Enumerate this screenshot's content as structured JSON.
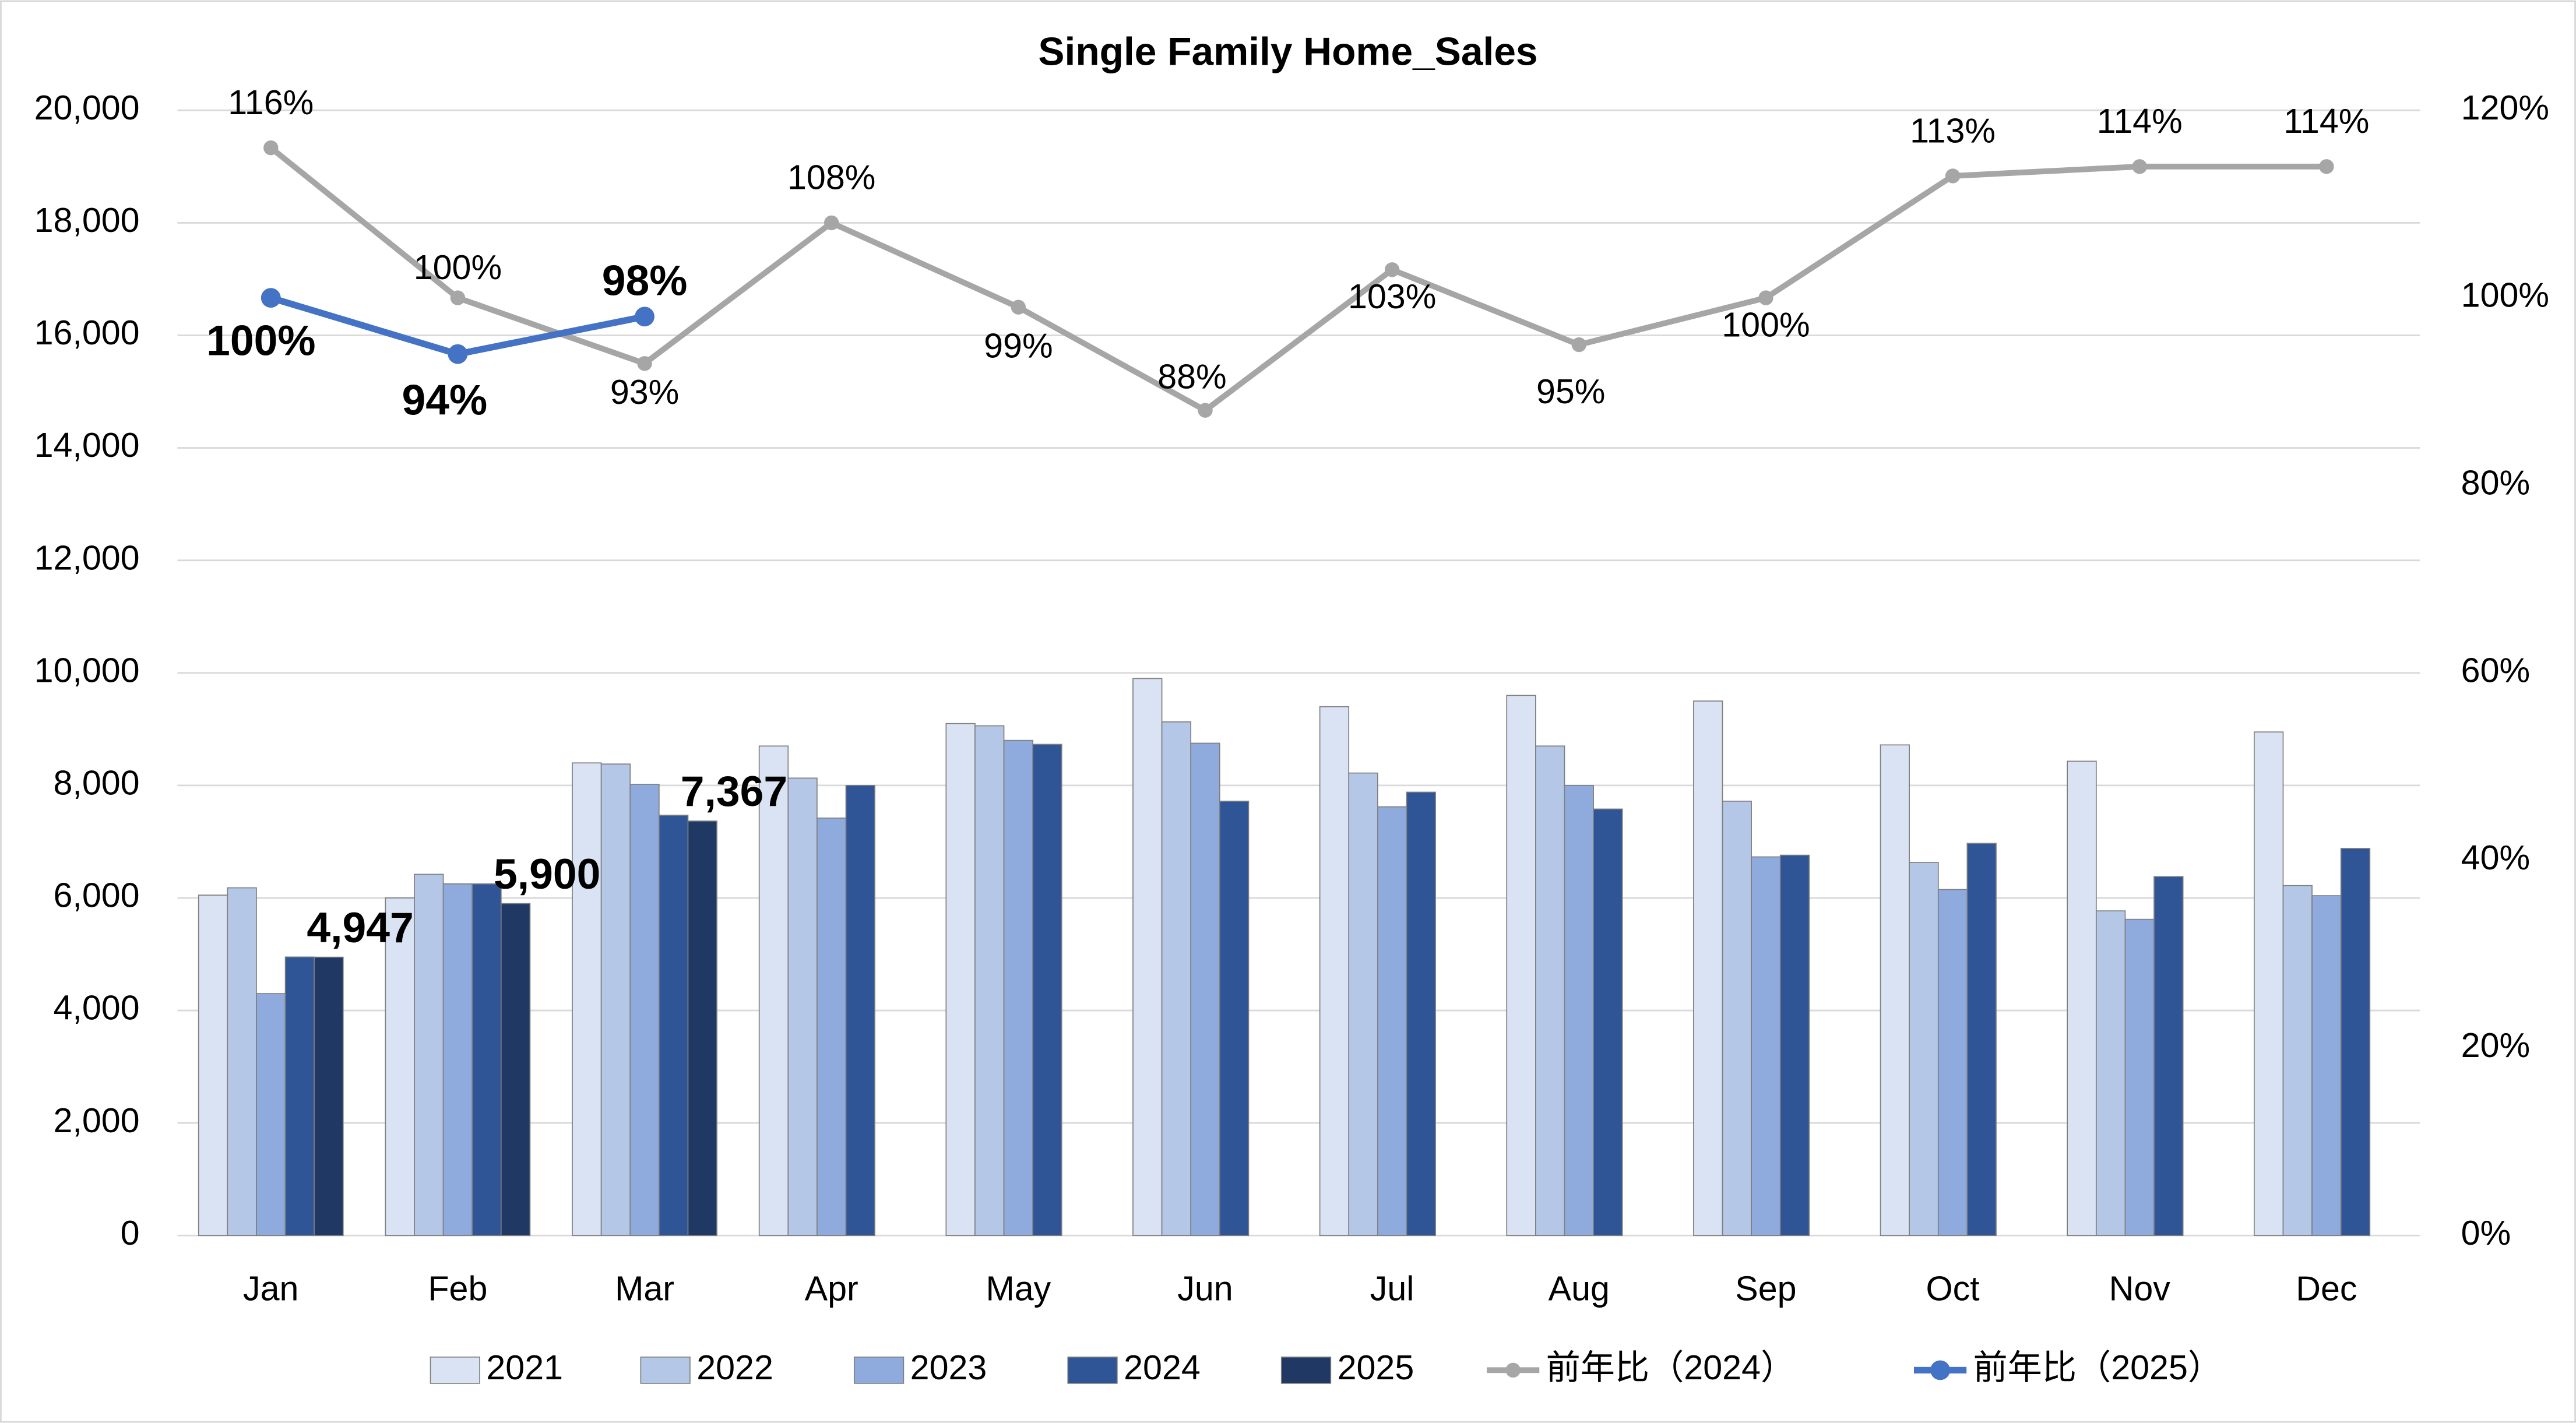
{
  "chart_data": {
    "type": "bar",
    "title": "Single Family Home_Sales",
    "categories": [
      "Jan",
      "Feb",
      "Mar",
      "Apr",
      "May",
      "Jun",
      "Jul",
      "Aug",
      "Sep",
      "Oct",
      "Nov",
      "Dec"
    ],
    "series": [
      {
        "name": "2021",
        "color": "#dae3f3",
        "values": [
          6050,
          6000,
          8400,
          8700,
          9100,
          9900,
          9400,
          9600,
          9500,
          8720,
          8430,
          8950
        ]
      },
      {
        "name": "2022",
        "color": "#b4c7e7",
        "values": [
          6180,
          6420,
          8380,
          8130,
          9060,
          9130,
          8220,
          8700,
          7720,
          6630,
          5770,
          6220
        ]
      },
      {
        "name": "2023",
        "color": "#8faadc",
        "values": [
          4300,
          6250,
          8020,
          7420,
          8800,
          8750,
          7620,
          8000,
          6730,
          6150,
          5620,
          6040
        ]
      },
      {
        "name": "2024",
        "color": "#2f5597",
        "values": [
          4950,
          6250,
          7470,
          8000,
          8730,
          7720,
          7880,
          7580,
          6760,
          6970,
          6380,
          6880
        ]
      },
      {
        "name": "2025",
        "color": "#203864",
        "values": [
          4947,
          5900,
          7367,
          null,
          null,
          null,
          null,
          null,
          null,
          null,
          null,
          null
        ],
        "value_labels": [
          "4,947",
          "5,900",
          "7,367",
          null,
          null,
          null,
          null,
          null,
          null,
          null,
          null,
          null
        ]
      },
      {
        "name": "前年比（2024）",
        "type": "line",
        "axis": "y2",
        "color": "#a6a6a6",
        "values": [
          116,
          100,
          93,
          108,
          99,
          88,
          103,
          95,
          100,
          113,
          114,
          114
        ],
        "value_labels": [
          "116%",
          "100%",
          "93%",
          "108%",
          "99%",
          "88%",
          "103%",
          "95%",
          "100%",
          "113%",
          "114%",
          "114%"
        ]
      },
      {
        "name": "前年比（2025）",
        "type": "line",
        "axis": "y2",
        "color": "#4472c4",
        "values": [
          100,
          94,
          98,
          null,
          null,
          null,
          null,
          null,
          null,
          null,
          null,
          null
        ],
        "value_labels": [
          "100%",
          "94%",
          "98%",
          null,
          null,
          null,
          null,
          null,
          null,
          null,
          null,
          null
        ]
      }
    ],
    "ylim": [
      0,
      20000
    ],
    "yticks": [
      0,
      {
        "value": 2000,
        "label": "2,000"
      },
      {
        "value": 4000,
        "label": "4,000"
      },
      {
        "value": 6000,
        "label": "6,000"
      },
      {
        "value": 8000,
        "label": "8,000"
      },
      {
        "value": 10000,
        "label": "10,000"
      },
      {
        "value": 12000,
        "label": "12,000"
      },
      {
        "value": 14000,
        "label": "14,000"
      },
      {
        "value": 16000,
        "label": "16,000"
      },
      {
        "value": 18000,
        "label": "18,000"
      },
      {
        "value": 20000,
        "label": "20,000"
      }
    ],
    "y2lim": [
      0,
      120
    ],
    "y2ticks": [
      {
        "value": 0,
        "label": "0%"
      },
      {
        "value": 20,
        "label": "20%"
      },
      {
        "value": 40,
        "label": "40%"
      },
      {
        "value": 60,
        "label": "60%"
      },
      {
        "value": 80,
        "label": "80%"
      },
      {
        "value": 100,
        "label": "100%"
      },
      {
        "value": 120,
        "label": "120%"
      }
    ],
    "grid": true,
    "legend": "bottom"
  }
}
